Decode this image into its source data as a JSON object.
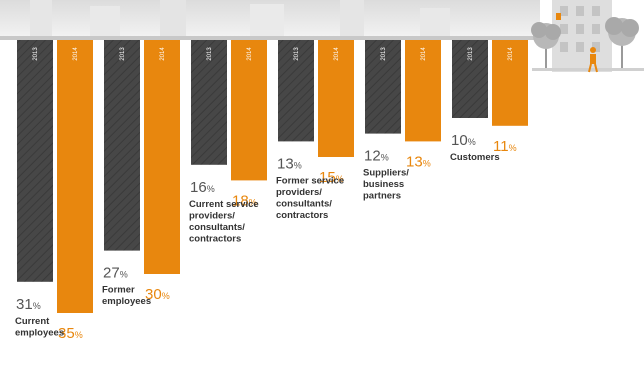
{
  "chart_data": {
    "type": "bar",
    "categories": [
      [
        "Current",
        "employees"
      ],
      [
        "Former",
        "employees"
      ],
      [
        "Current service",
        "providers/",
        "consultants/",
        "contractors"
      ],
      [
        "Former service",
        "providers/",
        "consultants/",
        "contractors"
      ],
      [
        "Suppliers/",
        "business",
        "partners"
      ],
      [
        "Customers"
      ]
    ],
    "series": [
      {
        "name": "2013",
        "values": [
          31,
          27,
          16,
          13,
          12,
          10
        ]
      },
      {
        "name": "2014",
        "values": [
          35,
          30,
          18,
          15,
          13,
          11
        ]
      }
    ],
    "value_suffix": "%",
    "colors": {
      "2013": "#4a4a4a",
      "2014": "#e8870e",
      "label_2013": "#555555",
      "label_2014": "#e8870e"
    },
    "orientation": "bars-hang-downward",
    "grid": false,
    "legend": "year labels printed inside bar tops"
  }
}
